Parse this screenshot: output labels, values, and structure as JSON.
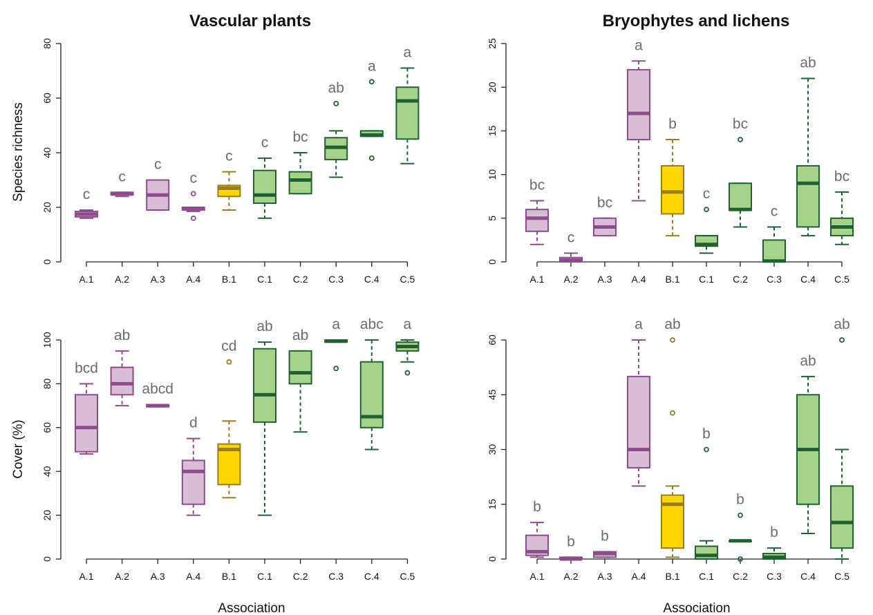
{
  "colors": {
    "A": {
      "fill": "#d8bdd6",
      "stroke": "#8e4b8c"
    },
    "B": {
      "fill": "#ffd700",
      "stroke": "#9a7d1d"
    },
    "C": {
      "fill": "#a6d28a",
      "stroke": "#1f6130"
    }
  },
  "chart_data": [
    {
      "type": "box",
      "title": "Vascular plants",
      "ylabel": "Species richness",
      "xlabel": "",
      "ylim": [
        0,
        80
      ],
      "yticks": [
        0,
        20,
        40,
        60,
        80
      ],
      "categories": [
        "A.1",
        "A.2",
        "A.3",
        "A.4",
        "B.1",
        "C.1",
        "C.2",
        "C.3",
        "C.4",
        "C.5"
      ],
      "boxes": [
        {
          "group": "A",
          "min": 16,
          "q1": 16.5,
          "median": 17.5,
          "q3": 18.5,
          "max": 19,
          "outliers": [],
          "letter": "c"
        },
        {
          "group": "A",
          "min": 24,
          "q1": 24.5,
          "median": 25,
          "q3": 25.5,
          "max": 25.5,
          "outliers": [],
          "letter": "c"
        },
        {
          "group": "A",
          "min": 19,
          "q1": 19,
          "median": 24.5,
          "q3": 30,
          "max": 30,
          "outliers": [],
          "letter": "c"
        },
        {
          "group": "A",
          "min": 18.5,
          "q1": 19,
          "median": 19.5,
          "q3": 20,
          "max": 20,
          "outliers": [
            16,
            25
          ],
          "letter": "c"
        },
        {
          "group": "B",
          "min": 19,
          "q1": 24,
          "median": 27,
          "q3": 28,
          "max": 33,
          "outliers": [],
          "letter": "c"
        },
        {
          "group": "C",
          "min": 16,
          "q1": 21.5,
          "median": 24.5,
          "q3": 33.5,
          "max": 38,
          "outliers": [],
          "letter": "c"
        },
        {
          "group": "C",
          "min": 25,
          "q1": 25,
          "median": 30,
          "q3": 33,
          "max": 40,
          "outliers": [],
          "letter": "bc"
        },
        {
          "group": "C",
          "min": 31,
          "q1": 37.5,
          "median": 42,
          "q3": 45.5,
          "max": 48,
          "outliers": [
            58
          ],
          "letter": "ab"
        },
        {
          "group": "C",
          "min": 46,
          "q1": 46,
          "median": 46.5,
          "q3": 48,
          "max": 48,
          "outliers": [
            38,
            66
          ],
          "letter": "a"
        },
        {
          "group": "C",
          "min": 36,
          "q1": 45,
          "median": 59,
          "q3": 64,
          "max": 71,
          "outliers": [],
          "letter": "a"
        }
      ]
    },
    {
      "type": "box",
      "title": "Bryophytes and lichens",
      "ylabel": "",
      "xlabel": "",
      "ylim": [
        0,
        25
      ],
      "yticks": [
        0,
        5,
        10,
        15,
        20,
        25
      ],
      "categories": [
        "A.1",
        "A.2",
        "A.3",
        "A.4",
        "B.1",
        "C.1",
        "C.2",
        "C.3",
        "C.4",
        "C.5"
      ],
      "boxes": [
        {
          "group": "A",
          "min": 2,
          "q1": 3.5,
          "median": 5,
          "q3": 6,
          "max": 7,
          "outliers": [],
          "letter": "bc"
        },
        {
          "group": "A",
          "min": 0,
          "q1": 0,
          "median": 0.2,
          "q3": 0.5,
          "max": 1,
          "outliers": [],
          "letter": "c"
        },
        {
          "group": "A",
          "min": 3,
          "q1": 3,
          "median": 4,
          "q3": 5,
          "max": 5,
          "outliers": [],
          "letter": "bc"
        },
        {
          "group": "A",
          "min": 7,
          "q1": 14,
          "median": 17,
          "q3": 22,
          "max": 23,
          "outliers": [],
          "letter": "a"
        },
        {
          "group": "B",
          "min": 3,
          "q1": 5.5,
          "median": 8,
          "q3": 11,
          "max": 14,
          "outliers": [],
          "letter": "b"
        },
        {
          "group": "C",
          "min": 1,
          "q1": 1.8,
          "median": 2,
          "q3": 3,
          "max": 3,
          "outliers": [
            6
          ],
          "letter": "c"
        },
        {
          "group": "C",
          "min": 4,
          "q1": 5.9,
          "median": 6,
          "q3": 9,
          "max": 9,
          "outliers": [
            14
          ],
          "letter": "bc"
        },
        {
          "group": "C",
          "min": 0,
          "q1": 0,
          "median": 0.1,
          "q3": 2.5,
          "max": 4,
          "outliers": [],
          "letter": "c"
        },
        {
          "group": "C",
          "min": 3,
          "q1": 4,
          "median": 9,
          "q3": 11,
          "max": 21,
          "outliers": [],
          "letter": "ab"
        },
        {
          "group": "C",
          "min": 2,
          "q1": 3,
          "median": 4,
          "q3": 5,
          "max": 8,
          "outliers": [],
          "letter": "bc"
        }
      ]
    },
    {
      "type": "box",
      "title": "",
      "ylabel": "Cover (%)",
      "xlabel": "Association",
      "ylim": [
        0,
        100
      ],
      "yticks": [
        0,
        20,
        40,
        60,
        80,
        100
      ],
      "categories": [
        "A.1",
        "A.2",
        "A.3",
        "A.4",
        "B.1",
        "C.1",
        "C.2",
        "C.3",
        "C.4",
        "C.5"
      ],
      "boxes": [
        {
          "group": "A",
          "min": 48,
          "q1": 49,
          "median": 60,
          "q3": 75,
          "max": 80,
          "outliers": [],
          "letter": "bcd"
        },
        {
          "group": "A",
          "min": 70,
          "q1": 75,
          "median": 80,
          "q3": 87.5,
          "max": 95,
          "outliers": [],
          "letter": "ab"
        },
        {
          "group": "A",
          "min": 69.5,
          "q1": 69.5,
          "median": 70,
          "q3": 70.5,
          "max": 70.5,
          "outliers": [],
          "letter": "abcd"
        },
        {
          "group": "A",
          "min": 20,
          "q1": 25,
          "median": 40,
          "q3": 45,
          "max": 55,
          "outliers": [],
          "letter": "d"
        },
        {
          "group": "B",
          "min": 28,
          "q1": 34,
          "median": 50,
          "q3": 52.5,
          "max": 63,
          "outliers": [
            90
          ],
          "letter": "cd"
        },
        {
          "group": "C",
          "min": 20,
          "q1": 62.5,
          "median": 75,
          "q3": 96,
          "max": 99,
          "outliers": [],
          "letter": "ab"
        },
        {
          "group": "C",
          "min": 58,
          "q1": 80,
          "median": 85,
          "q3": 95,
          "max": 95,
          "outliers": [],
          "letter": "ab"
        },
        {
          "group": "C",
          "min": 99,
          "q1": 99,
          "median": 99.5,
          "q3": 100,
          "max": 100,
          "outliers": [
            87
          ],
          "letter": "a"
        },
        {
          "group": "C",
          "min": 50,
          "q1": 60,
          "median": 65,
          "q3": 90,
          "max": 100,
          "outliers": [],
          "letter": "abc"
        },
        {
          "group": "C",
          "min": 90,
          "q1": 95,
          "median": 97,
          "q3": 99,
          "max": 100,
          "outliers": [
            85
          ],
          "letter": "a"
        }
      ]
    },
    {
      "type": "box",
      "title": "",
      "ylabel": "",
      "xlabel": "Association",
      "ylim": [
        0,
        60
      ],
      "yticks": [
        0,
        15,
        30,
        45,
        60
      ],
      "categories": [
        "A.1",
        "A.2",
        "A.3",
        "A.4",
        "B.1",
        "C.1",
        "C.2",
        "C.3",
        "C.4",
        "C.5"
      ],
      "boxes": [
        {
          "group": "A",
          "min": 0.5,
          "q1": 1,
          "median": 2,
          "q3": 6.5,
          "max": 10,
          "outliers": [],
          "letter": "b"
        },
        {
          "group": "A",
          "min": 0,
          "q1": 0,
          "median": 0,
          "q3": 0.5,
          "max": 0.5,
          "outliers": [],
          "letter": "b"
        },
        {
          "group": "A",
          "min": 0.5,
          "q1": 0.5,
          "median": 1.5,
          "q3": 2,
          "max": 2,
          "outliers": [],
          "letter": "b"
        },
        {
          "group": "A",
          "min": 20,
          "q1": 25,
          "median": 30,
          "q3": 50,
          "max": 60,
          "outliers": [],
          "letter": "a"
        },
        {
          "group": "B",
          "min": 0.5,
          "q1": 3,
          "median": 15,
          "q3": 17.5,
          "max": 20,
          "outliers": [
            40,
            60
          ],
          "letter": "ab"
        },
        {
          "group": "C",
          "min": 0,
          "q1": 0,
          "median": 1,
          "q3": 3.5,
          "max": 5,
          "outliers": [
            30
          ],
          "letter": "b"
        },
        {
          "group": "C",
          "min": 5,
          "q1": 5,
          "median": 5,
          "q3": 5,
          "max": 5,
          "outliers": [
            12,
            0
          ],
          "letter": "b"
        },
        {
          "group": "C",
          "min": 0,
          "q1": 0,
          "median": 0.5,
          "q3": 1.5,
          "max": 3,
          "outliers": [],
          "letter": "b"
        },
        {
          "group": "C",
          "min": 7,
          "q1": 15,
          "median": 30,
          "q3": 45,
          "max": 50,
          "outliers": [],
          "letter": "ab"
        },
        {
          "group": "C",
          "min": 0,
          "q1": 3,
          "median": 10,
          "q3": 20,
          "max": 30,
          "outliers": [
            60
          ],
          "letter": "ab"
        }
      ]
    }
  ]
}
